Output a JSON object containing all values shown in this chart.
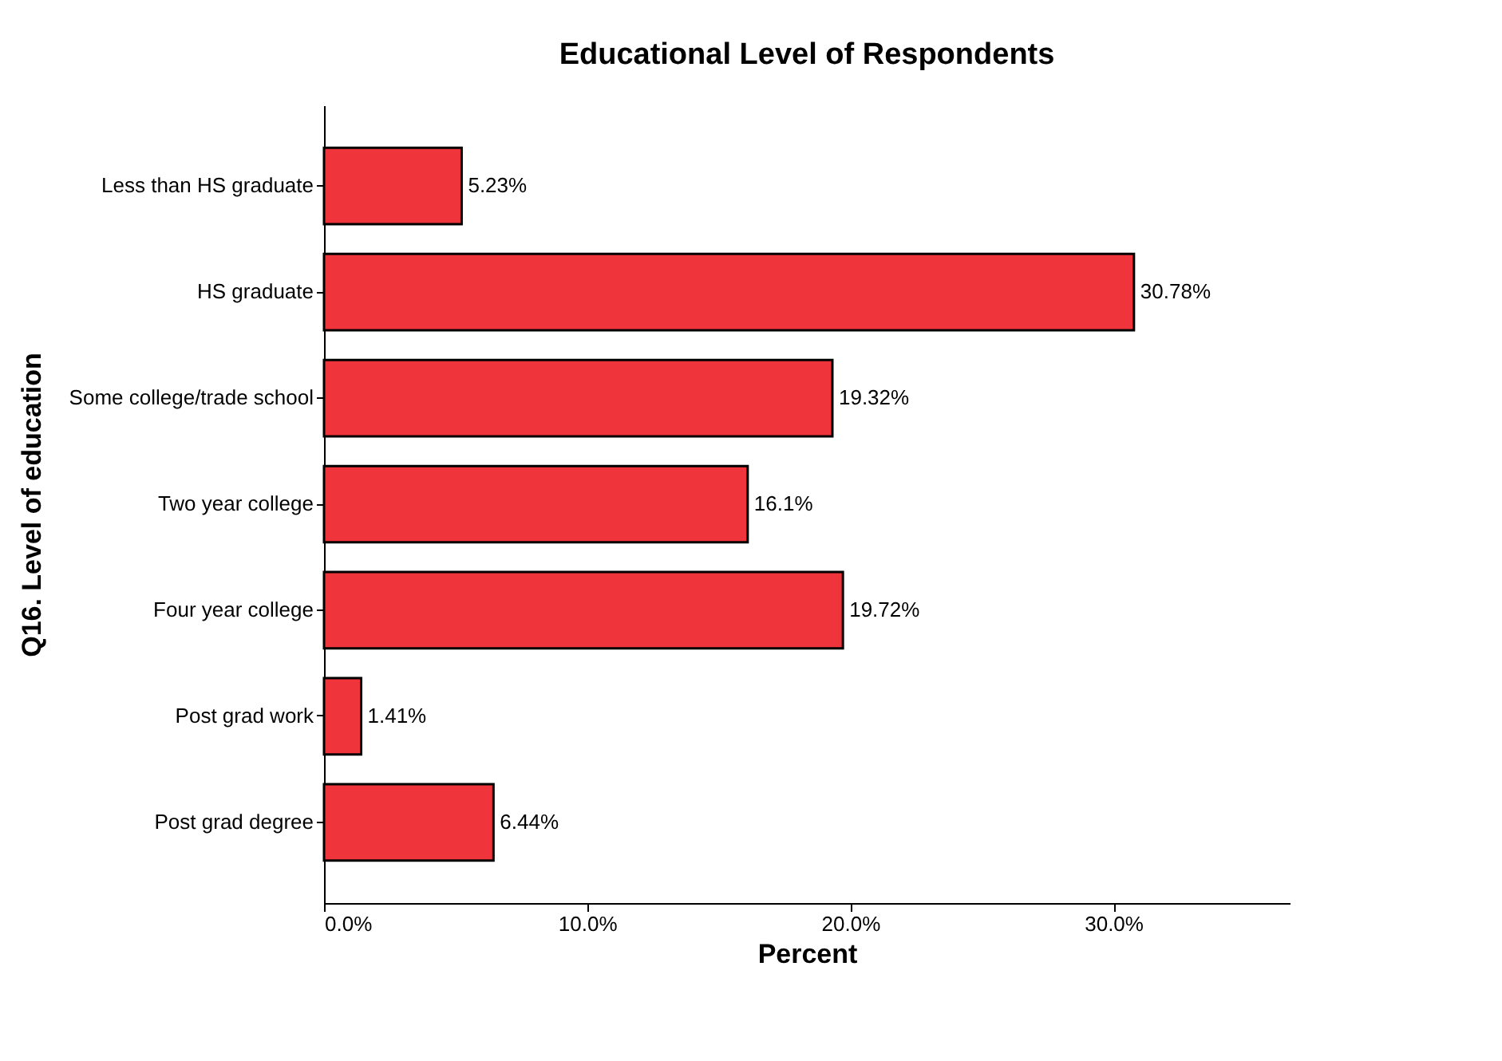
{
  "chart_data": {
    "type": "bar",
    "orientation": "horizontal",
    "title": "Educational Level of Respondents",
    "xlabel": "Percent",
    "ylabel": "Q16. Level of education",
    "categories": [
      "Less than HS graduate",
      "HS graduate",
      "Some college/trade school",
      "Two year college",
      "Four year college",
      "Post grad work",
      "Post grad degree"
    ],
    "values": [
      5.23,
      30.78,
      19.32,
      16.1,
      19.72,
      1.41,
      6.44
    ],
    "value_labels": [
      "5.23%",
      "30.78%",
      "19.32%",
      "16.1%",
      "19.72%",
      "1.41%",
      "6.44%"
    ],
    "color": "#ef343c",
    "xlim": [
      0,
      36.7
    ],
    "xticks": [
      {
        "value": 0,
        "label": "0.0%"
      },
      {
        "value": 10,
        "label": "10.0%"
      },
      {
        "value": 20,
        "label": "20.0%"
      },
      {
        "value": 30,
        "label": "30.0%"
      }
    ],
    "grid": false
  }
}
